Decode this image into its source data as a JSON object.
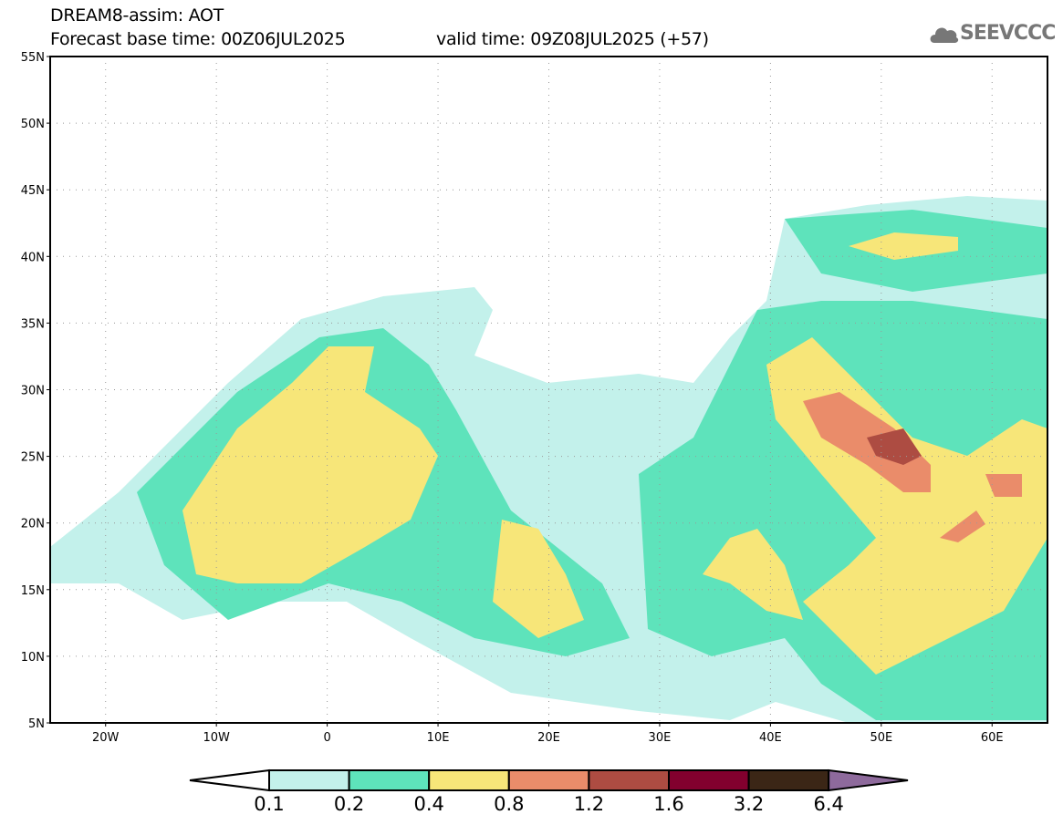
{
  "title": "DREAM8-assim: AOT",
  "base_time": "Forecast base time: 00Z06JUL2025",
  "valid_time": "valid time: 09Z08JUL2025 (+57)",
  "logo": "SEEVCCC",
  "lat_labels": [
    "55N",
    "50N",
    "45N",
    "40N",
    "35N",
    "30N",
    "25N",
    "20N",
    "15N",
    "10N",
    "5N"
  ],
  "lon_labels": [
    "20W",
    "10W",
    "0",
    "10E",
    "20E",
    "30E",
    "40E",
    "50E",
    "60E"
  ],
  "colorbar": {
    "levels": [
      "0.1",
      "0.2",
      "0.4",
      "0.8",
      "1.2",
      "1.6",
      "3.2",
      "6.4"
    ],
    "colors": [
      "#ffffff",
      "#c3f1eb",
      "#5ee3bb",
      "#f7e679",
      "#ea8c6a",
      "#ad4c42",
      "#82002e",
      "#3b2616",
      "#8e6a9c"
    ]
  }
}
